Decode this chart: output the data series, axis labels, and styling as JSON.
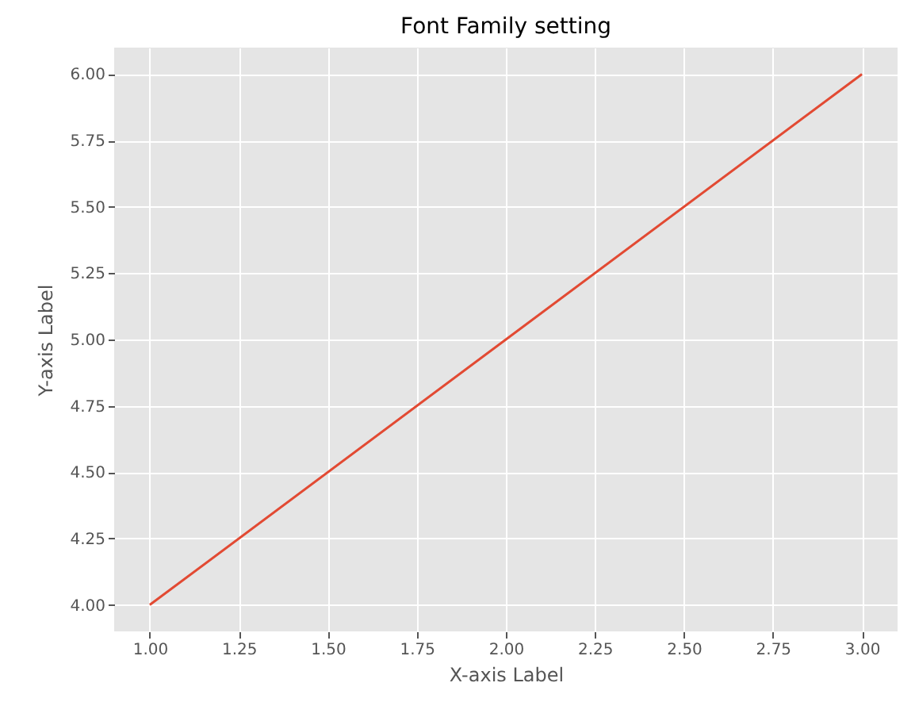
{
  "chart_data": {
    "type": "line",
    "title": "Font Family setting",
    "xlabel": "X-axis Label",
    "ylabel": "Y-axis Label",
    "x": [
      1,
      2,
      3
    ],
    "series": [
      {
        "color": "#e24a33",
        "values": [
          4,
          5,
          6
        ]
      }
    ],
    "xlim": [
      0.9,
      3.1
    ],
    "ylim": [
      3.9,
      6.1
    ],
    "xticks": [
      {
        "value": 1,
        "label": "1.00"
      },
      {
        "value": 1.25,
        "label": "1.25"
      },
      {
        "value": 1.5,
        "label": "1.50"
      },
      {
        "value": 1.75,
        "label": "1.75"
      },
      {
        "value": 2,
        "label": "2.00"
      },
      {
        "value": 2.25,
        "label": "2.25"
      },
      {
        "value": 2.5,
        "label": "2.50"
      },
      {
        "value": 2.75,
        "label": "2.75"
      },
      {
        "value": 3,
        "label": "3.00"
      }
    ],
    "yticks": [
      {
        "value": 4,
        "label": "4.00"
      },
      {
        "value": 4.25,
        "label": "4.25"
      },
      {
        "value": 4.5,
        "label": "4.50"
      },
      {
        "value": 4.75,
        "label": "4.75"
      },
      {
        "value": 5,
        "label": "5.00"
      },
      {
        "value": 5.25,
        "label": "5.25"
      },
      {
        "value": 5.5,
        "label": "5.50"
      },
      {
        "value": 5.75,
        "label": "5.75"
      },
      {
        "value": 6,
        "label": "6.00"
      }
    ],
    "grid": true,
    "marker": "none",
    "line_style": "solid"
  }
}
